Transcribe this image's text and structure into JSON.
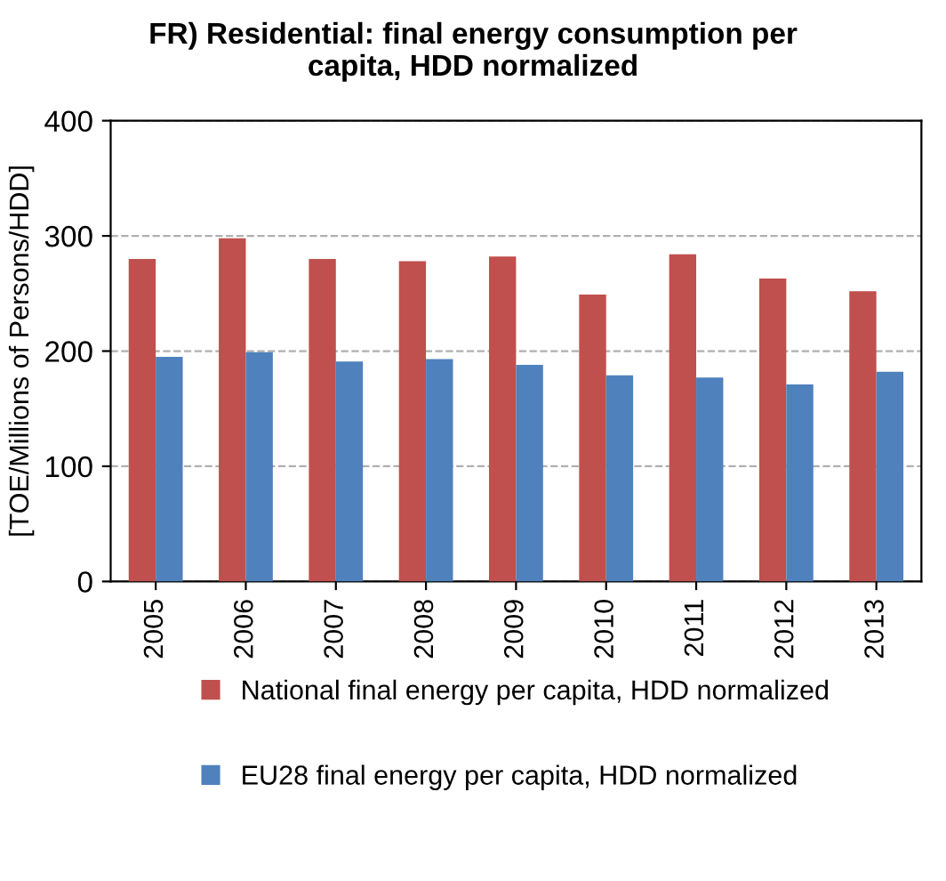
{
  "chart_data": {
    "type": "bar",
    "title": "FR) Residential: final energy consumption per\ncapita, HDD normalized",
    "ylabel": "[TOE/Millions of Persons/HDD]",
    "categories": [
      "2005",
      "2006",
      "2007",
      "2008",
      "2009",
      "2010",
      "2011",
      "2012",
      "2013"
    ],
    "series": [
      {
        "name": "National final energy per capita, HDD normalized",
        "color": "#c0504d",
        "values": [
          280,
          298,
          280,
          278,
          282,
          249,
          284,
          263,
          252
        ]
      },
      {
        "name": "EU28 final energy per capita, HDD normalized",
        "color": "#4f81bd",
        "values": [
          195,
          199,
          191,
          193,
          188,
          179,
          177,
          171,
          182
        ]
      }
    ],
    "ylim": [
      0,
      400
    ],
    "yticks": [
      0,
      100,
      200,
      300,
      400
    ],
    "grid": "y",
    "legend": "bottom"
  }
}
